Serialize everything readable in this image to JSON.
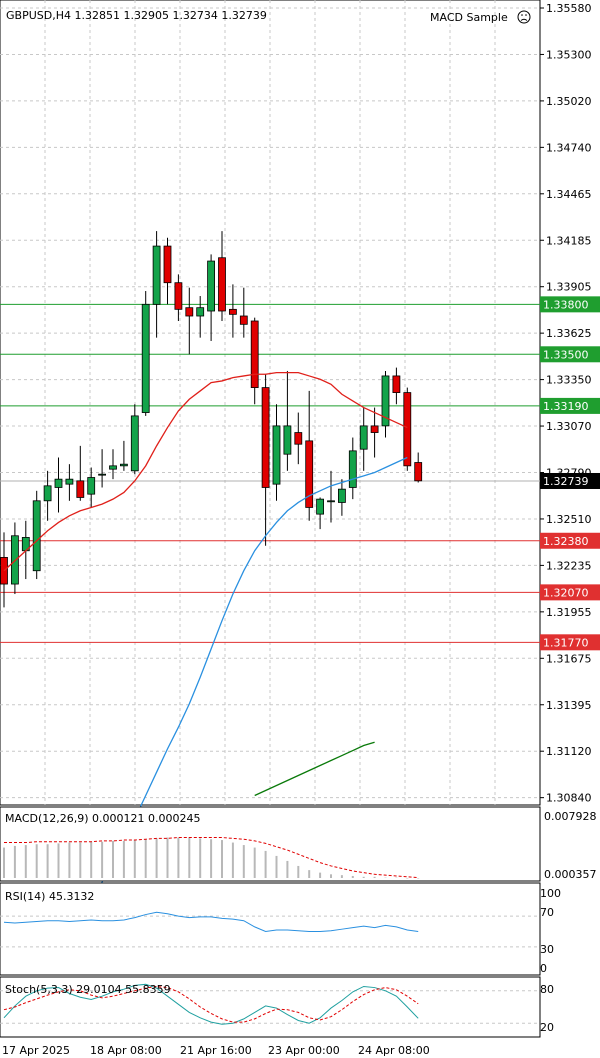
{
  "header": {
    "symbol_info": "GBPUSD,H4  1.32851 1.32905 1.32734 1.32739",
    "ea_name": "MACD Sample",
    "ea_icon": "frown-face-icon"
  },
  "main": {
    "price_axis": [
      "1.35580",
      "1.35300",
      "1.35020",
      "1.34740",
      "1.34465",
      "1.34185",
      "1.33905",
      "1.33625",
      "1.33350",
      "1.33070",
      "1.32790",
      "1.32510",
      "1.32235",
      "1.31955",
      "1.31675",
      "1.31395",
      "1.31120",
      "1.30840"
    ],
    "levels_green": [
      "1.33800",
      "1.33500",
      "1.33190"
    ],
    "levels_red": [
      "1.32380",
      "1.32070",
      "1.31770"
    ],
    "current_price": "1.32739",
    "colors": {
      "bull": "#13a34a",
      "bear": "#e00000",
      "ma_fast": "#e0201a",
      "ma_slow": "#2a90e0",
      "ma_long": "#0a7a0a",
      "green_line": "#1f9e2f",
      "red_line": "#e03030",
      "grid": "#c8c8c8"
    }
  },
  "chart_data": {
    "type": "candlestick",
    "symbol": "GBPUSD",
    "timeframe": "H4",
    "candles": [
      {
        "o": 1.3228,
        "h": 1.3243,
        "l": 1.3198,
        "c": 1.3212
      },
      {
        "o": 1.3212,
        "h": 1.3249,
        "l": 1.3206,
        "c": 1.3241
      },
      {
        "o": 1.3232,
        "h": 1.325,
        "l": 1.3215,
        "c": 1.324
      },
      {
        "o": 1.322,
        "h": 1.3268,
        "l": 1.3215,
        "c": 1.3262
      },
      {
        "o": 1.3262,
        "h": 1.328,
        "l": 1.325,
        "c": 1.3271
      },
      {
        "o": 1.327,
        "h": 1.3288,
        "l": 1.3255,
        "c": 1.3275
      },
      {
        "o": 1.3272,
        "h": 1.3284,
        "l": 1.3262,
        "c": 1.3275
      },
      {
        "o": 1.3274,
        "h": 1.3295,
        "l": 1.3262,
        "c": 1.3264
      },
      {
        "o": 1.3266,
        "h": 1.3282,
        "l": 1.3258,
        "c": 1.3276
      },
      {
        "o": 1.3278,
        "h": 1.3293,
        "l": 1.327,
        "c": 1.3278
      },
      {
        "o": 1.3281,
        "h": 1.3293,
        "l": 1.3275,
        "c": 1.3283
      },
      {
        "o": 1.3283,
        "h": 1.3298,
        "l": 1.328,
        "c": 1.3284
      },
      {
        "o": 1.328,
        "h": 1.332,
        "l": 1.3278,
        "c": 1.3313
      },
      {
        "o": 1.3315,
        "h": 1.3388,
        "l": 1.3313,
        "c": 1.338
      },
      {
        "o": 1.338,
        "h": 1.3424,
        "l": 1.336,
        "c": 1.3415
      },
      {
        "o": 1.3415,
        "h": 1.342,
        "l": 1.338,
        "c": 1.3393
      },
      {
        "o": 1.3393,
        "h": 1.3398,
        "l": 1.337,
        "c": 1.3377
      },
      {
        "o": 1.3378,
        "h": 1.339,
        "l": 1.335,
        "c": 1.3373
      },
      {
        "o": 1.3373,
        "h": 1.3385,
        "l": 1.336,
        "c": 1.3378
      },
      {
        "o": 1.3376,
        "h": 1.341,
        "l": 1.3358,
        "c": 1.3406
      },
      {
        "o": 1.3408,
        "h": 1.3424,
        "l": 1.337,
        "c": 1.3376
      },
      {
        "o": 1.3377,
        "h": 1.3392,
        "l": 1.336,
        "c": 1.3374
      },
      {
        "o": 1.3373,
        "h": 1.339,
        "l": 1.336,
        "c": 1.3368
      },
      {
        "o": 1.337,
        "h": 1.3372,
        "l": 1.332,
        "c": 1.333
      },
      {
        "o": 1.333,
        "h": 1.3338,
        "l": 1.3235,
        "c": 1.327
      },
      {
        "o": 1.3272,
        "h": 1.332,
        "l": 1.3262,
        "c": 1.3307
      },
      {
        "o": 1.329,
        "h": 1.334,
        "l": 1.328,
        "c": 1.3307
      },
      {
        "o": 1.3303,
        "h": 1.3315,
        "l": 1.3284,
        "c": 1.3296
      },
      {
        "o": 1.3298,
        "h": 1.3328,
        "l": 1.325,
        "c": 1.3258
      },
      {
        "o": 1.3254,
        "h": 1.3264,
        "l": 1.3245,
        "c": 1.3263
      },
      {
        "o": 1.3262,
        "h": 1.328,
        "l": 1.3249,
        "c": 1.3262
      },
      {
        "o": 1.3261,
        "h": 1.3275,
        "l": 1.3253,
        "c": 1.3269
      },
      {
        "o": 1.327,
        "h": 1.33,
        "l": 1.3263,
        "c": 1.3292
      },
      {
        "o": 1.3293,
        "h": 1.3318,
        "l": 1.328,
        "c": 1.3307
      },
      {
        "o": 1.3307,
        "h": 1.3318,
        "l": 1.3288,
        "c": 1.3303
      },
      {
        "o": 1.3307,
        "h": 1.334,
        "l": 1.33,
        "c": 1.3337
      },
      {
        "o": 1.3337,
        "h": 1.3342,
        "l": 1.332,
        "c": 1.3327
      },
      {
        "o": 1.3327,
        "h": 1.333,
        "l": 1.328,
        "c": 1.3283
      },
      {
        "o": 1.3285,
        "h": 1.3291,
        "l": 1.3273,
        "c": 1.3274
      }
    ],
    "ma_fast": [
      1.322,
      1.3226,
      1.3232,
      1.3238,
      1.3244,
      1.3249,
      1.3253,
      1.3256,
      1.3258,
      1.326,
      1.3263,
      1.3267,
      1.3274,
      1.3283,
      1.3295,
      1.3306,
      1.3316,
      1.3323,
      1.3328,
      1.3333,
      1.3334,
      1.3336,
      1.3337,
      1.3338,
      1.3338,
      1.3339,
      1.3339,
      1.3339,
      1.3337,
      1.3335,
      1.3332,
      1.3326,
      1.3322,
      1.3318,
      1.3315,
      1.3312,
      1.3309,
      1.3306
    ],
    "ma_slow": [
      1.3012,
      1.3022,
      1.3033,
      1.3045,
      1.3058,
      1.3071,
      1.3085,
      1.3099,
      1.3113,
      1.3126,
      1.314,
      1.3156,
      1.3173,
      1.319,
      1.3206,
      1.322,
      1.3232,
      1.3241,
      1.3249,
      1.3256,
      1.3261,
      1.3265,
      1.3268,
      1.3271,
      1.3273,
      1.3275,
      1.3277,
      1.3279,
      1.3282,
      1.3285,
      1.3288
    ],
    "ma_long": [
      1.3085,
      1.3088,
      1.3091,
      1.3094,
      1.3097,
      1.31,
      1.3103,
      1.3106,
      1.3109,
      1.3112,
      1.3115,
      1.3117
    ],
    "ylim": [
      1.307,
      1.3558
    ]
  },
  "macd": {
    "label": "MACD(12,26,9) 0.000121 0.000245",
    "axis_top": "0.007928",
    "axis_bottom": "0.000357",
    "bars": [
      0.004,
      0.0042,
      0.0043,
      0.0044,
      0.0044,
      0.0045,
      0.0046,
      0.0046,
      0.0047,
      0.0047,
      0.0048,
      0.0048,
      0.0049,
      0.005,
      0.0051,
      0.0052,
      0.0052,
      0.0052,
      0.0051,
      0.005,
      0.0049,
      0.0046,
      0.0043,
      0.004,
      0.0036,
      0.003,
      0.0024,
      0.0018,
      0.0013,
      0.001,
      0.0008,
      0.0007,
      0.0006,
      0.0005,
      0.0005,
      0.0004,
      0.0004,
      0.0003,
      0.0003
    ],
    "signal": [
      0.0046,
      0.0046,
      0.0046,
      0.0047,
      0.0047,
      0.0047,
      0.0047,
      0.0047,
      0.0047,
      0.0048,
      0.0048,
      0.0049,
      0.0049,
      0.005,
      0.0051,
      0.0051,
      0.0052,
      0.0052,
      0.0052,
      0.0052,
      0.0052,
      0.0051,
      0.005,
      0.0048,
      0.0045,
      0.0041,
      0.0037,
      0.0032,
      0.0027,
      0.0022,
      0.0018,
      0.0015,
      0.0012,
      0.001,
      0.0008,
      0.0007,
      0.0006,
      0.0005,
      0.0004
    ]
  },
  "rsi": {
    "label": "RSI(14) 45.3132",
    "levels": [
      "100",
      "70",
      "30",
      "0"
    ],
    "values": [
      62,
      61,
      62,
      63,
      64,
      64,
      63,
      64,
      65,
      64,
      64,
      65,
      68,
      72,
      75,
      73,
      70,
      68,
      69,
      69,
      67,
      66,
      64,
      56,
      50,
      52,
      52,
      51,
      50,
      50,
      51,
      53,
      55,
      57,
      55,
      58,
      56,
      52,
      50
    ]
  },
  "stoch": {
    "label": "Stoch(5,3,3) 29.0104 55.8359",
    "levels": [
      "80",
      "20"
    ],
    "main": [
      30,
      52,
      70,
      80,
      85,
      86,
      75,
      68,
      64,
      70,
      78,
      83,
      90,
      92,
      85,
      70,
      55,
      40,
      30,
      22,
      18,
      20,
      28,
      40,
      52,
      48,
      36,
      25,
      20,
      30,
      48,
      62,
      78,
      88,
      86,
      80,
      70,
      50,
      29
    ],
    "signal": [
      45,
      50,
      58,
      65,
      72,
      78,
      82,
      80,
      72,
      67,
      70,
      75,
      80,
      85,
      88,
      86,
      78,
      65,
      50,
      38,
      28,
      22,
      22,
      28,
      38,
      46,
      45,
      40,
      30,
      26,
      32,
      45,
      60,
      73,
      82,
      86,
      82,
      70,
      56
    ]
  },
  "time_axis": [
    "17 Apr 2025",
    "18 Apr 08:00",
    "21 Apr 16:00",
    "23 Apr 00:00",
    "24 Apr 08:00"
  ]
}
